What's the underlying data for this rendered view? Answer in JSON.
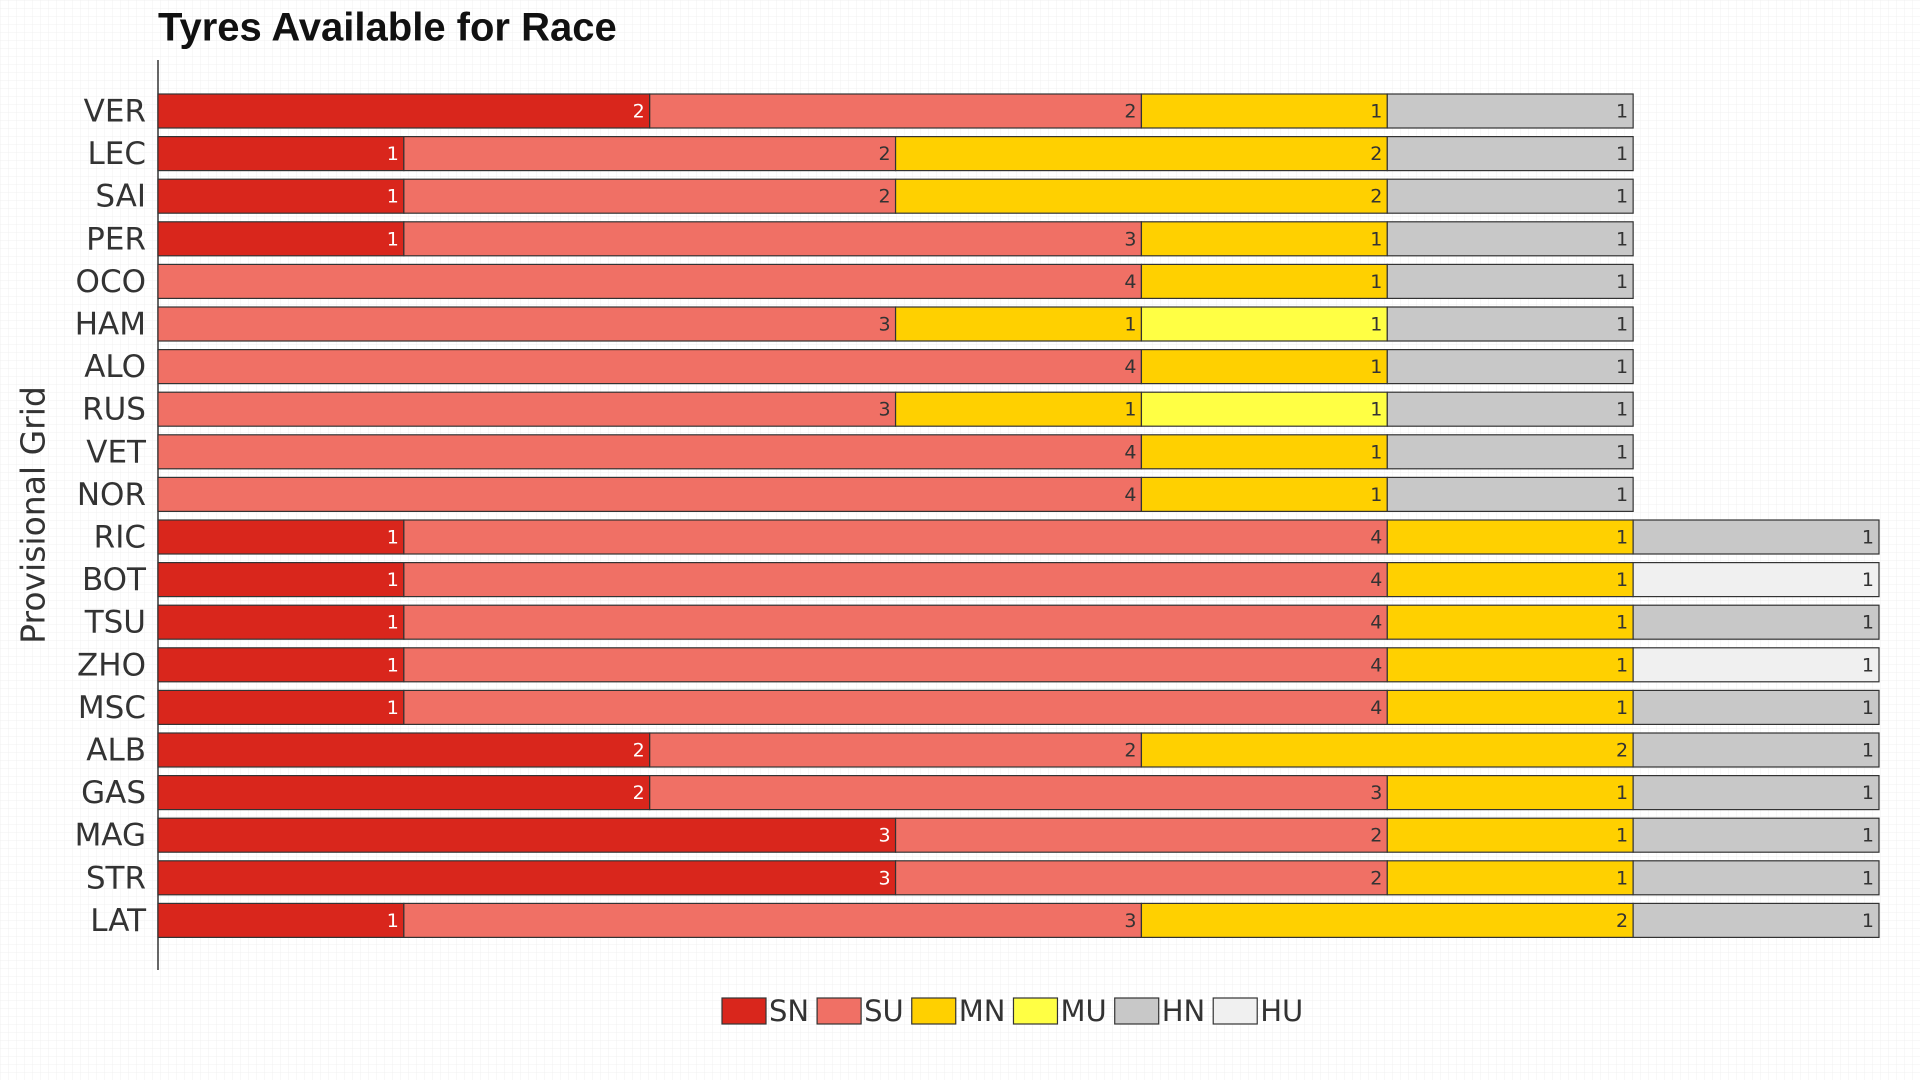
{
  "chart_data": {
    "type": "stacked-bar",
    "orientation": "horizontal",
    "title": "Tyres Available for Race",
    "y_label": "Provisional Grid",
    "categories": [
      "VER",
      "LEC",
      "SAI",
      "PER",
      "OCO",
      "HAM",
      "ALO",
      "RUS",
      "VET",
      "NOR",
      "RIC",
      "BOT",
      "TSU",
      "ZHO",
      "MSC",
      "ALB",
      "GAS",
      "MAG",
      "STR",
      "LAT"
    ],
    "xlim": [
      0,
      7
    ],
    "series": [
      {
        "name": "SN",
        "color": "#d9261c",
        "label_color": "#ffffff",
        "values": [
          2,
          1,
          1,
          1,
          0,
          0,
          0,
          0,
          0,
          0,
          1,
          1,
          1,
          1,
          1,
          2,
          2,
          3,
          3,
          1
        ]
      },
      {
        "name": "SU",
        "color": "#f07065",
        "label_color": "#333333",
        "values": [
          2,
          2,
          2,
          3,
          4,
          3,
          4,
          3,
          4,
          4,
          4,
          4,
          4,
          4,
          4,
          2,
          3,
          2,
          2,
          3
        ]
      },
      {
        "name": "MN",
        "color": "#ffd000",
        "label_color": "#333333",
        "values": [
          1,
          2,
          2,
          1,
          1,
          1,
          1,
          1,
          1,
          1,
          1,
          1,
          1,
          1,
          1,
          2,
          1,
          1,
          1,
          2
        ]
      },
      {
        "name": "MU",
        "color": "#ffff44",
        "label_color": "#333333",
        "values": [
          0,
          0,
          0,
          0,
          0,
          1,
          0,
          1,
          0,
          0,
          0,
          0,
          0,
          0,
          0,
          0,
          0,
          0,
          0,
          0
        ]
      },
      {
        "name": "HN",
        "color": "#c8c8c8",
        "label_color": "#333333",
        "values": [
          1,
          1,
          1,
          1,
          1,
          1,
          1,
          1,
          1,
          1,
          1,
          0,
          1,
          0,
          1,
          1,
          1,
          1,
          1,
          1
        ]
      },
      {
        "name": "HU",
        "color": "#f0f0f0",
        "label_color": "#333333",
        "values": [
          0,
          0,
          0,
          0,
          0,
          0,
          0,
          0,
          0,
          0,
          0,
          1,
          0,
          1,
          0,
          0,
          0,
          0,
          0,
          0
        ]
      }
    ]
  }
}
